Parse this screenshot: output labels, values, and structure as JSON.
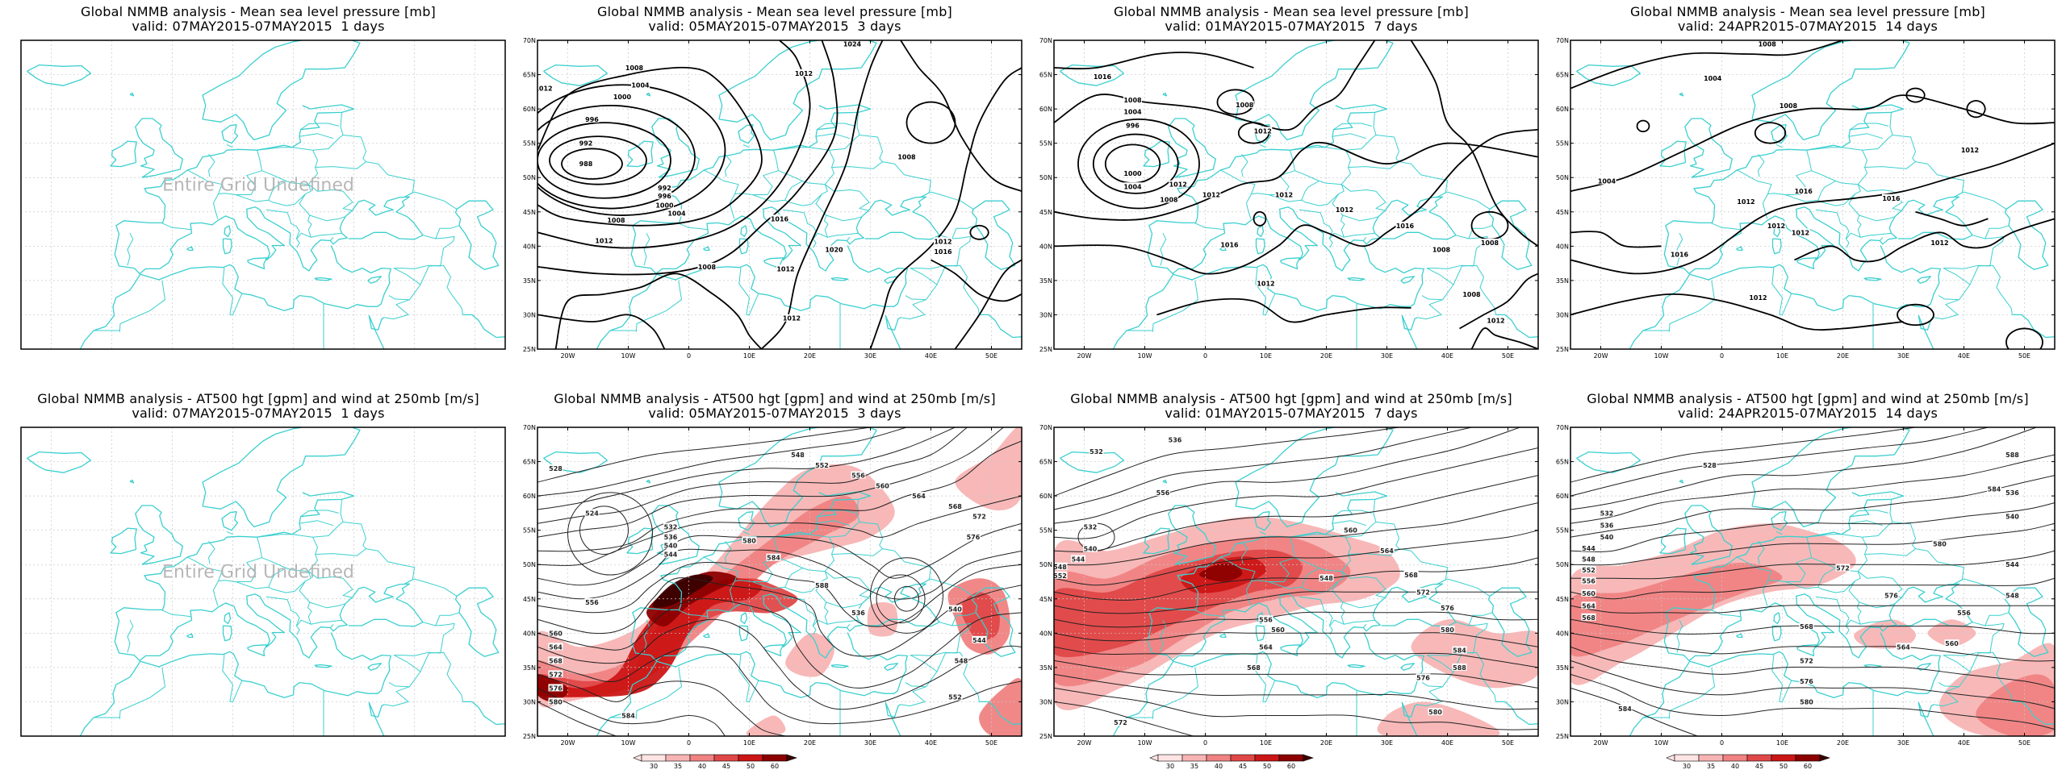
{
  "colors": {
    "coast": "#3ccfcf",
    "contour": "#000000",
    "wind_levels": [
      "#ffe4e4",
      "#f8b4b4",
      "#f08282",
      "#e04848",
      "#cc1616",
      "#8c0000",
      "#3b0000"
    ]
  },
  "map_axes": {
    "lat_labels": [
      "70N",
      "65N",
      "60N",
      "55N",
      "50N",
      "45N",
      "40N",
      "35N",
      "30N",
      "25N"
    ],
    "lon_labels": [
      "20W",
      "10W",
      "0",
      "10E",
      "20E",
      "30E",
      "40E",
      "50E"
    ]
  },
  "colorbar": {
    "labels": [
      "30",
      "35",
      "40",
      "45",
      "50",
      "60"
    ]
  },
  "panels": [
    {
      "id": "mslp-1d",
      "title_line1": "Global NMMB analysis - Mean sea level pressure [mb]",
      "title_line2": "valid: 07MAY2015-07MAY2015  1 days",
      "undefined_text": "Entire Grid Undefined",
      "labels": []
    },
    {
      "id": "mslp-3d",
      "title_line1": "Global NMMB analysis - Mean sea level pressure [mb]",
      "title_line2": "valid: 05MAY2015-07MAY2015  3 days",
      "labels": [
        "1008",
        "1004",
        "1000",
        "996",
        "992",
        "988",
        "1012",
        "992",
        "996",
        "1000",
        "1004",
        "1008",
        "1012",
        "1016",
        "1020",
        "1024",
        "1012",
        "1008",
        "1012",
        "1016",
        "1012",
        "1008",
        "1012"
      ]
    },
    {
      "id": "mslp-7d",
      "title_line1": "Global NMMB analysis - Mean sea level pressure [mb]",
      "title_line2": "valid: 01MAY2015-07MAY2015  7 days",
      "labels": [
        "1016",
        "1008",
        "1004",
        "996",
        "1000",
        "1004",
        "1008",
        "1012",
        "1012",
        "1008",
        "1012",
        "1012",
        "1016",
        "1012",
        "1012",
        "1016",
        "1008",
        "1008",
        "1012",
        "1008"
      ]
    },
    {
      "id": "mslp-14d",
      "title_line1": "Global NMMB analysis - Mean sea level pressure [mb]",
      "title_line2": "valid: 24APR2015-07MAY2015  14 days",
      "labels": [
        "1008",
        "1004",
        "1008",
        "1012",
        "1004",
        "1012",
        "1016",
        "1012",
        "1012",
        "1016",
        "1016",
        "1012",
        "1012"
      ]
    },
    {
      "id": "z500-1d",
      "title_line1": "Global NMMB analysis - AT500 hgt [gpm] and wind at 250mb [m/s]",
      "title_line2": "valid: 07MAY2015-07MAY2015  1 days",
      "undefined_text": "Entire Grid Undefined",
      "labels": []
    },
    {
      "id": "z500-3d",
      "title_line1": "Global NMMB analysis - AT500 hgt [gpm] and wind at 250mb [m/s]",
      "title_line2": "valid: 05MAY2015-07MAY2015  3 days",
      "labels": [
        "528",
        "524",
        "532",
        "536",
        "540",
        "544",
        "548",
        "552",
        "556",
        "560",
        "564",
        "568",
        "572",
        "576",
        "580",
        "584",
        "588",
        "536",
        "540",
        "544",
        "548",
        "552",
        "556",
        "560",
        "564",
        "568",
        "572",
        "576",
        "580",
        "584"
      ]
    },
    {
      "id": "z500-7d",
      "title_line1": "Global NMMB analysis - AT500 hgt [gpm] and wind at 250mb [m/s]",
      "title_line2": "valid: 01MAY2015-07MAY2015  7 days",
      "labels": [
        "532",
        "536",
        "532",
        "540",
        "544",
        "548",
        "552",
        "556",
        "560",
        "564",
        "568",
        "572",
        "576",
        "580",
        "584",
        "588",
        "548",
        "556",
        "560",
        "564",
        "568",
        "572",
        "576",
        "580"
      ]
    },
    {
      "id": "z500-14d",
      "title_line1": "Global NMMB analysis - AT500 hgt [gpm] and wind at 250mb [m/s]",
      "title_line2": "valid: 24APR2015-07MAY2015  14 days",
      "labels": [
        "528",
        "532",
        "536",
        "540",
        "544",
        "548",
        "552",
        "556",
        "560",
        "564",
        "568",
        "572",
        "576",
        "580",
        "584",
        "588",
        "536",
        "540",
        "544",
        "548",
        "556",
        "560",
        "564",
        "568",
        "572",
        "576",
        "580",
        "584"
      ]
    }
  ]
}
